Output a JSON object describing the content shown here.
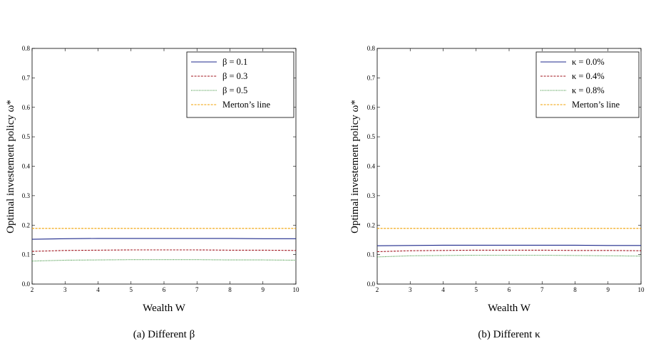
{
  "panels": [
    {
      "caption": "(a) Different β",
      "chart_data": {
        "type": "line",
        "xlabel": "Wealth W",
        "ylabel": "Optimal investement policy ω*",
        "xlim": [
          2,
          10
        ],
        "ylim": [
          0.0,
          0.8
        ],
        "xticks": [
          "2",
          "3",
          "4",
          "5",
          "6",
          "7",
          "8",
          "9",
          "10"
        ],
        "yticks": [
          "0.0",
          "0.1",
          "0.2",
          "0.3",
          "0.4",
          "0.5",
          "0.6",
          "0.7",
          "0.8"
        ],
        "legend_position": "top-right",
        "grid": false,
        "x": [
          2,
          3,
          4,
          5,
          6,
          7,
          8,
          9,
          10
        ],
        "series": [
          {
            "name": "β = 0.1",
            "color": "#1f2a8c",
            "dash": "solid",
            "values": [
              0.152,
              0.154,
              0.155,
              0.155,
              0.155,
              0.155,
              0.155,
              0.154,
              0.154
            ]
          },
          {
            "name": "β = 0.3",
            "color": "#a0141e",
            "dash": "dashed",
            "values": [
              0.111,
              0.114,
              0.115,
              0.116,
              0.116,
              0.116,
              0.115,
              0.115,
              0.114
            ]
          },
          {
            "name": "β = 0.5",
            "color": "#2e8b2e",
            "dash": "dotted",
            "values": [
              0.078,
              0.081,
              0.082,
              0.083,
              0.083,
              0.083,
              0.082,
              0.082,
              0.081
            ]
          },
          {
            "name": "Merton’s line",
            "color": "#f0a000",
            "dash": "dashed",
            "values": [
              0.189,
              0.189,
              0.189,
              0.189,
              0.189,
              0.189,
              0.189,
              0.189,
              0.189
            ]
          }
        ]
      }
    },
    {
      "caption": "(b) Different κ",
      "chart_data": {
        "type": "line",
        "xlabel": "Wealth W",
        "ylabel": "Optimal investement policy ω*",
        "xlim": [
          2,
          10
        ],
        "ylim": [
          0.0,
          0.8
        ],
        "xticks": [
          "2",
          "3",
          "4",
          "5",
          "6",
          "7",
          "8",
          "9",
          "10"
        ],
        "yticks": [
          "0.0",
          "0.1",
          "0.2",
          "0.3",
          "0.4",
          "0.5",
          "0.6",
          "0.7",
          "0.8"
        ],
        "legend_position": "top-right",
        "grid": false,
        "x": [
          2,
          3,
          4,
          5,
          6,
          7,
          8,
          9,
          10
        ],
        "series": [
          {
            "name": "κ = 0.0%",
            "color": "#1f2a8c",
            "dash": "solid",
            "values": [
              0.13,
              0.131,
              0.132,
              0.132,
              0.132,
              0.132,
              0.132,
              0.131,
              0.131
            ]
          },
          {
            "name": "κ = 0.4%",
            "color": "#a0141e",
            "dash": "dashed",
            "values": [
              0.11,
              0.113,
              0.114,
              0.115,
              0.115,
              0.115,
              0.114,
              0.114,
              0.113
            ]
          },
          {
            "name": "κ = 0.8%",
            "color": "#2e8b2e",
            "dash": "dotted",
            "values": [
              0.092,
              0.096,
              0.097,
              0.098,
              0.098,
              0.098,
              0.097,
              0.096,
              0.095
            ]
          },
          {
            "name": "Merton’s line",
            "color": "#f0a000",
            "dash": "dashed",
            "values": [
              0.189,
              0.189,
              0.189,
              0.189,
              0.189,
              0.189,
              0.189,
              0.189,
              0.189
            ]
          }
        ]
      }
    }
  ]
}
